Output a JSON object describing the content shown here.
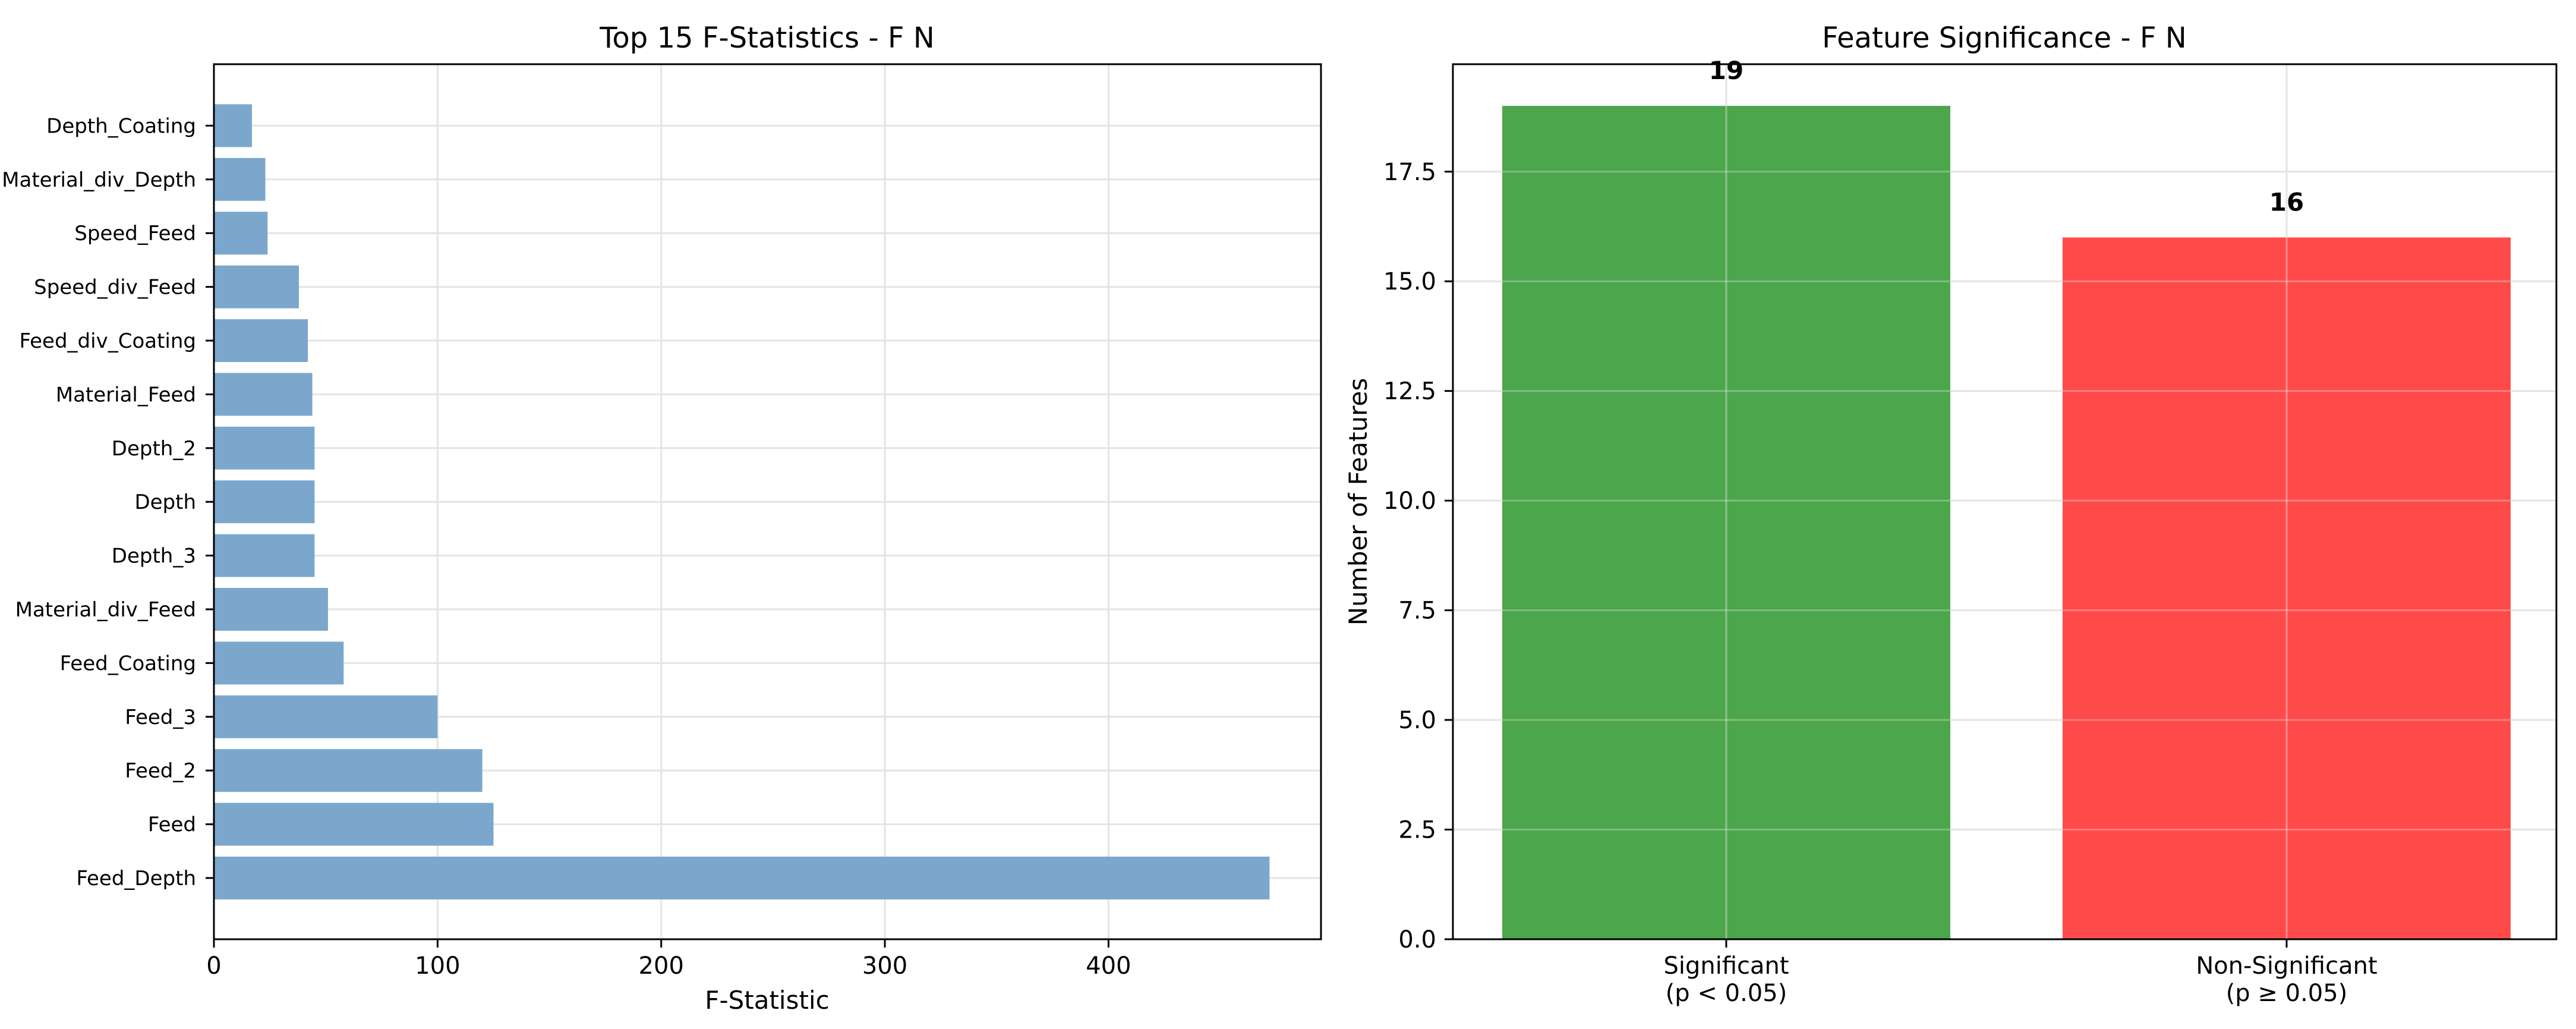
{
  "chart_data": [
    {
      "type": "bar",
      "orientation": "horizontal",
      "title": "Top 15 F-Statistics - F N",
      "xlabel": "F-Statistic",
      "ylabel": "",
      "categories": [
        "Feed_Depth",
        "Feed",
        "Feed_2",
        "Feed_3",
        "Feed_Coating",
        "Material_div_Feed",
        "Depth_3",
        "Depth",
        "Depth_2",
        "Material_Feed",
        "Feed_div_Coating",
        "Speed_div_Feed",
        "Speed_Feed",
        "Material_div_Depth",
        "Depth_Coating"
      ],
      "values": [
        472,
        125,
        120,
        100,
        58,
        51,
        45,
        45,
        45,
        44,
        42,
        38,
        24,
        23,
        17
      ],
      "xlim": [
        0,
        495
      ],
      "xticks": [
        0,
        100,
        200,
        300,
        400
      ],
      "xtick_labels": [
        "0",
        "100",
        "200",
        "300",
        "400"
      ],
      "grid": true,
      "color": "#7ba7cd"
    },
    {
      "type": "bar",
      "title": "Feature Significance - F N",
      "xlabel": "",
      "ylabel": "Number of Features",
      "categories": [
        "Significant",
        "Non-Significant"
      ],
      "category_sublabels": [
        "(p < 0.05)",
        "(p ≥ 0.05)"
      ],
      "values": [
        19,
        16
      ],
      "value_labels": [
        "19",
        "16"
      ],
      "colors": [
        "#4ca64c",
        "#ff4a4a"
      ],
      "ylim": [
        0,
        19.95
      ],
      "yticks": [
        0,
        2.5,
        5,
        7.5,
        10,
        12.5,
        15,
        17.5
      ],
      "ytick_labels": [
        "0.0",
        "2.5",
        "5.0",
        "7.5",
        "10.0",
        "12.5",
        "15.0",
        "17.5"
      ],
      "grid": true
    }
  ]
}
